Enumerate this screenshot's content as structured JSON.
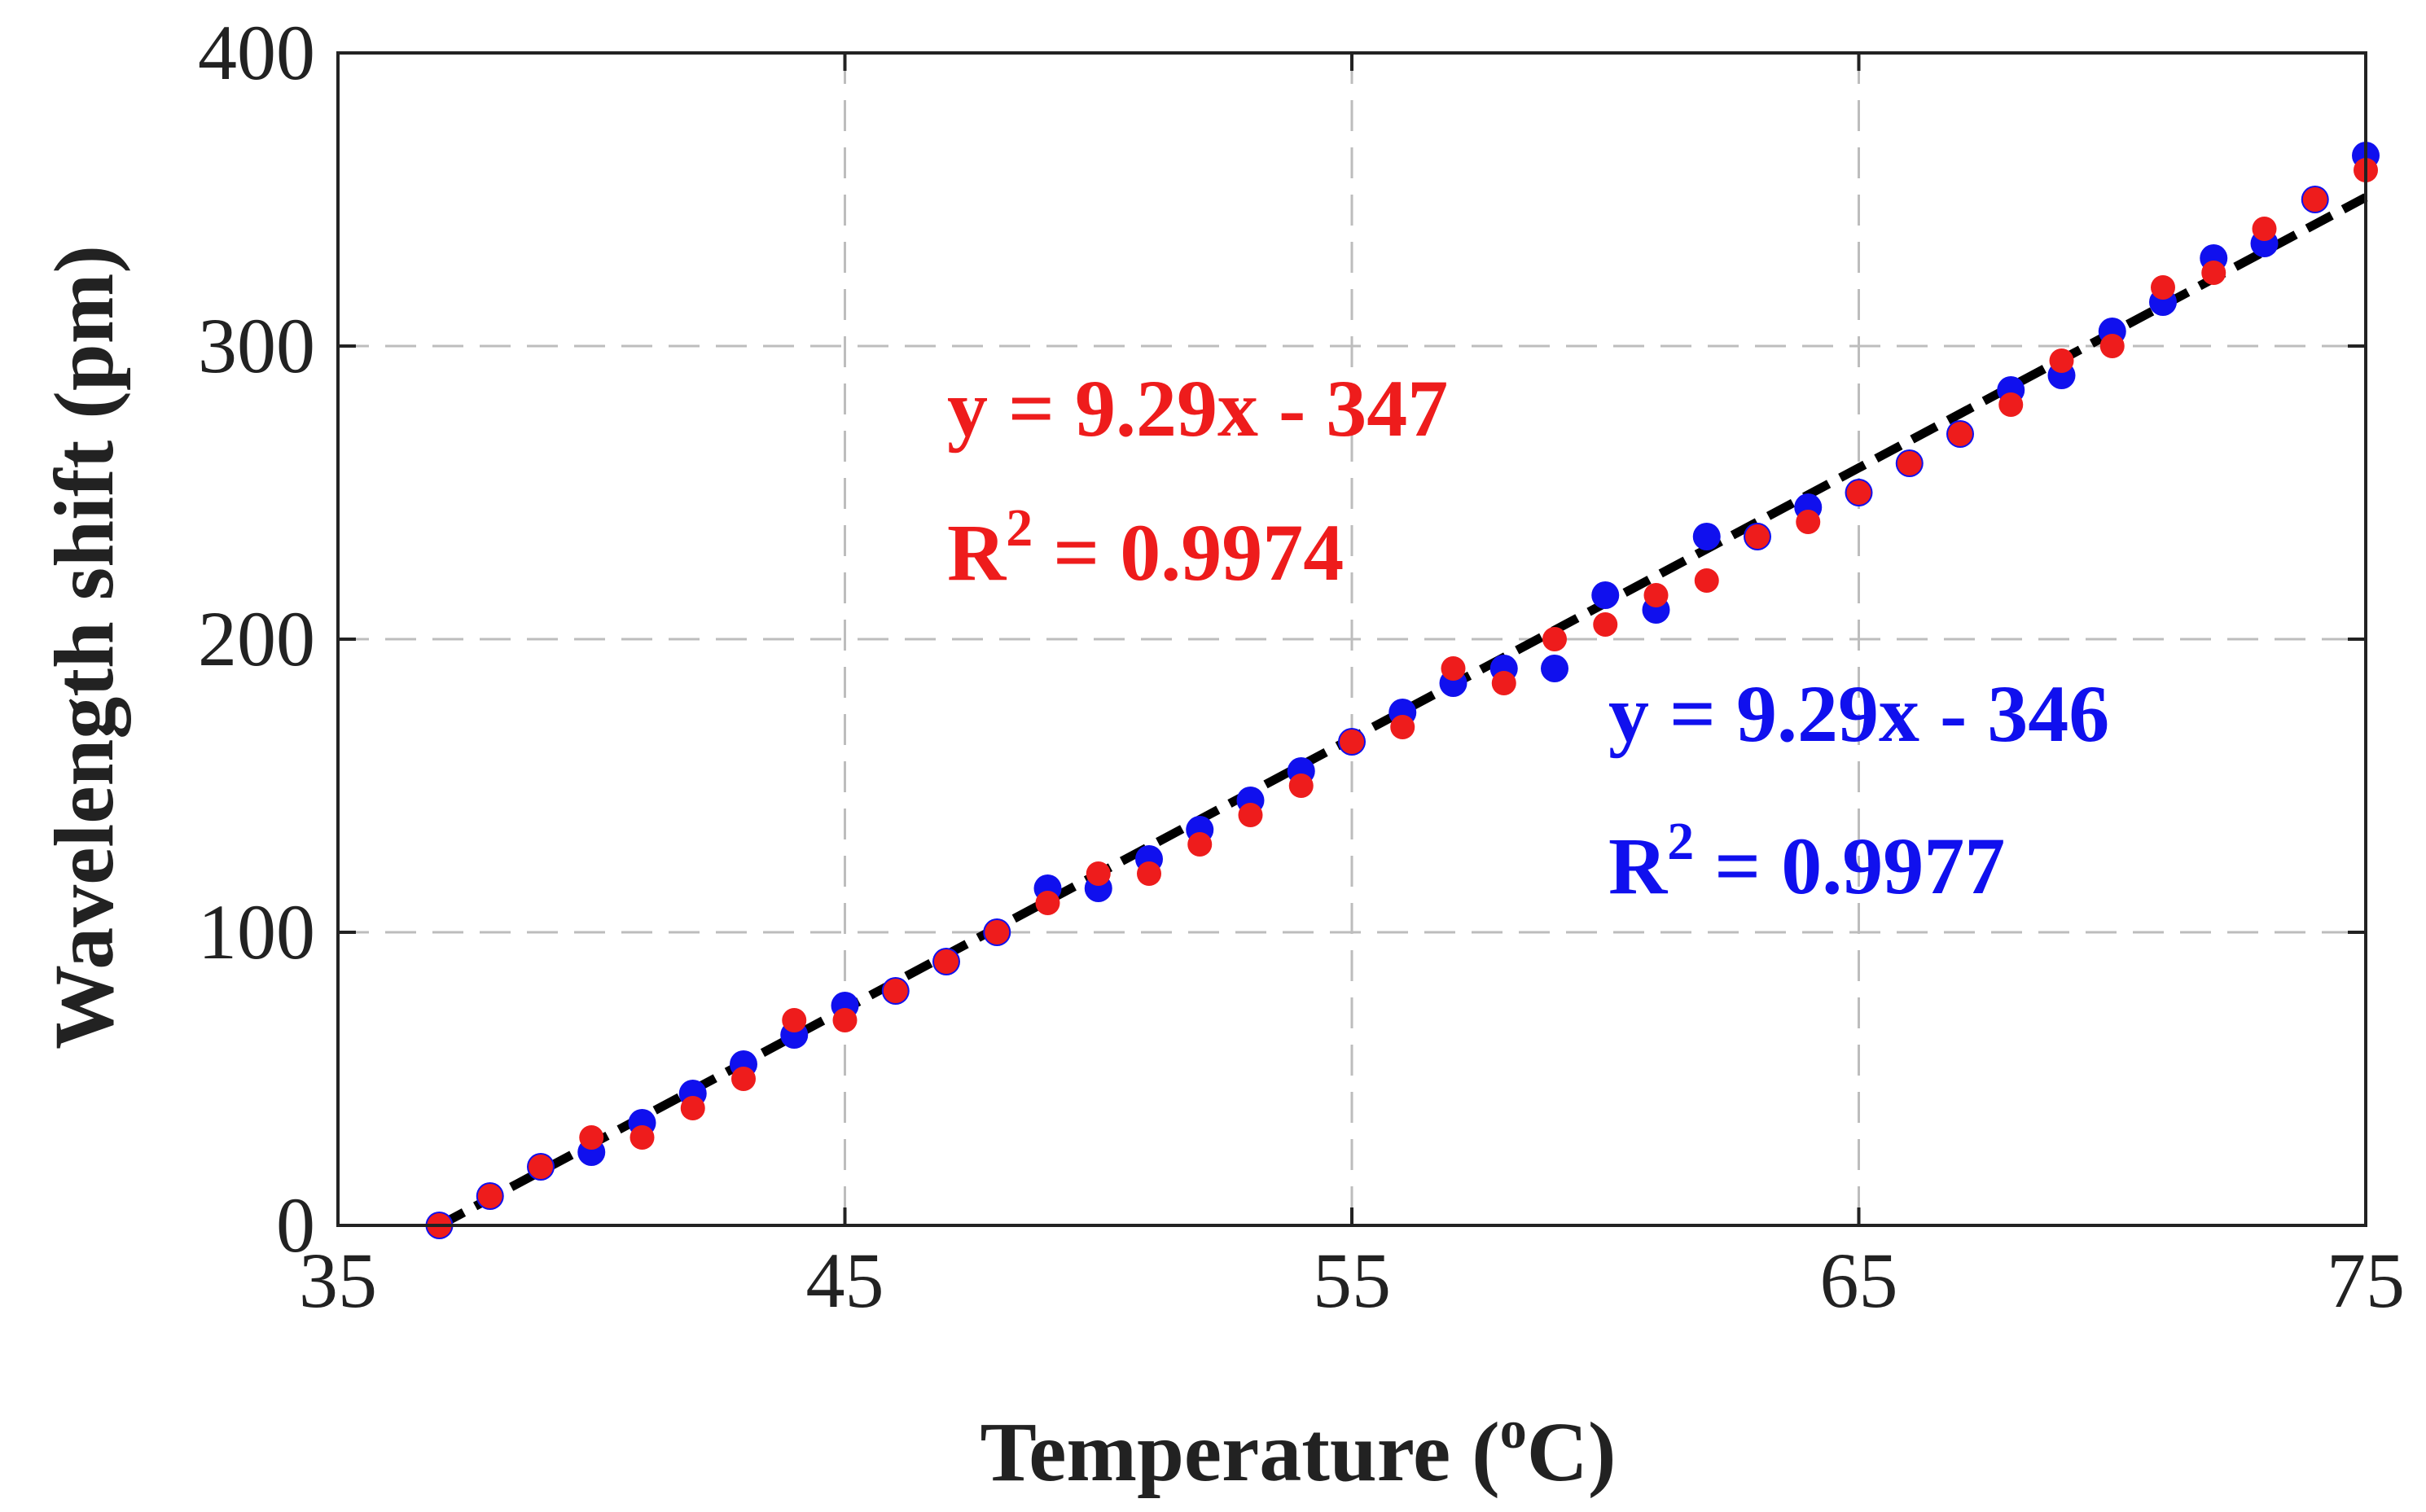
{
  "chart_data": {
    "type": "scatter",
    "title": "",
    "xlabel": "Temperature (",
    "xlabel_sup": "o",
    "xlabel_tail": "C)",
    "ylabel": "Wavelength shift (pm)",
    "xlim": [
      35,
      75
    ],
    "ylim": [
      0,
      400
    ],
    "xticks": [
      35,
      45,
      55,
      65,
      75
    ],
    "yticks": [
      0,
      100,
      200,
      300,
      400
    ],
    "grid": true,
    "colors": {
      "red": "#ee1c1c",
      "blue": "#1010ee",
      "fit": "#000000",
      "grid": "#bdbdbd",
      "axis": "#222222"
    },
    "series": [
      {
        "name": "blue",
        "color": "#1010ee",
        "x": [
          37,
          38,
          39,
          40,
          41,
          42,
          43,
          44,
          45,
          46,
          47,
          48,
          49,
          50,
          51,
          52,
          53,
          54,
          55,
          56,
          57,
          58,
          59,
          60,
          61,
          62,
          63,
          64,
          65,
          66,
          67,
          68,
          69,
          70,
          71,
          72,
          73,
          74,
          75
        ],
        "y": [
          0,
          10,
          20,
          25,
          35,
          45,
          55,
          65,
          75,
          80,
          90,
          100,
          115,
          115,
          125,
          135,
          145,
          155,
          165,
          175,
          185,
          190,
          190,
          215,
          210,
          235,
          235,
          245,
          250,
          260,
          270,
          285,
          290,
          305,
          315,
          330,
          335,
          350,
          365
        ]
      },
      {
        "name": "red",
        "color": "#ee1c1c",
        "x": [
          37,
          38,
          39,
          40,
          41,
          42,
          43,
          44,
          45,
          46,
          47,
          48,
          49,
          50,
          51,
          52,
          53,
          54,
          55,
          56,
          57,
          58,
          59,
          60,
          61,
          62,
          63,
          64,
          65,
          66,
          67,
          68,
          69,
          70,
          71,
          72,
          73,
          74,
          75
        ],
        "y": [
          0,
          10,
          20,
          30,
          30,
          40,
          50,
          70,
          70,
          80,
          90,
          100,
          110,
          120,
          120,
          130,
          140,
          150,
          165,
          170,
          190,
          185,
          200,
          205,
          215,
          220,
          235,
          240,
          250,
          260,
          270,
          280,
          295,
          300,
          320,
          325,
          340,
          350,
          360
        ]
      }
    ],
    "fit_line": {
      "slope": 9.29,
      "intercept": -346,
      "x_range": [
        37,
        75
      ]
    },
    "annotations": [
      {
        "id": "red_eq",
        "color": "#ee1c1c",
        "equation": "y = 9.29x - 347",
        "r2_label": "R",
        "r2_sup": "2",
        "r2_value": " = 0.9974"
      },
      {
        "id": "blue_eq",
        "color": "#1010ee",
        "equation": "y = 9.29x - 346",
        "r2_label": "R",
        "r2_sup": "2",
        "r2_value": " = 0.9977"
      }
    ]
  }
}
